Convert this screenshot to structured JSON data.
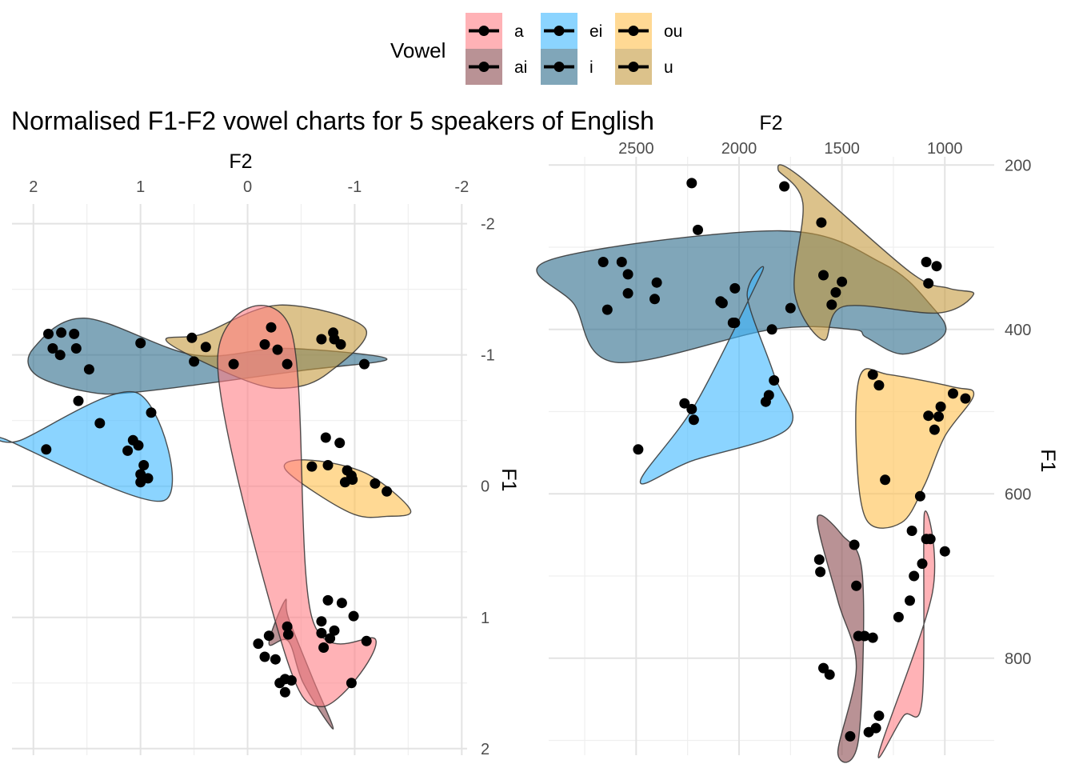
{
  "title": "Normalised F1-F2 vowel charts for 5 speakers of English",
  "legend": {
    "title": "Vowel",
    "placement": "top",
    "entries": [
      {
        "label": "a",
        "color": "#ff7f86"
      },
      {
        "label": "ai",
        "color": "#8b4a4f"
      },
      {
        "label": "ei",
        "color": "#3db8ff"
      },
      {
        "label": "i",
        "color": "#2c6a8a"
      },
      {
        "label": "ou",
        "color": "#ffc04d"
      },
      {
        "label": "u",
        "color": "#c49a3d"
      }
    ]
  },
  "chart_data": [
    {
      "type": "scatter",
      "xlabel": "F2",
      "ylabel": "F1",
      "x_reversed": true,
      "y_reversed": true,
      "xlim": [
        2.2,
        -2.05
      ],
      "ylim": [
        -2.15,
        2.05
      ],
      "x_ticks": [
        2,
        1,
        0,
        -1,
        -2
      ],
      "x_tick_labels": [
        "2",
        "1",
        "0",
        "-1",
        "-2"
      ],
      "y_ticks": [
        -2,
        -1,
        0,
        1,
        2
      ],
      "y_tick_labels": [
        "-2",
        "-1",
        "0",
        "1",
        "2"
      ],
      "x_axis_position": "top",
      "y_axis_position": "right",
      "grid": true,
      "series": [
        {
          "name": "a",
          "hull": [
            [
              0.28,
              -0.97
            ],
            [
              -0.4,
              -1.2
            ],
            [
              -0.6,
              1.0
            ],
            [
              -1.2,
              1.18
            ],
            [
              -0.7,
              1.68
            ],
            [
              -0.32,
              1.2
            ]
          ],
          "points": [
            [
              -0.75,
              0.87
            ],
            [
              -0.88,
              0.89
            ],
            [
              -0.99,
              0.99
            ],
            [
              -0.69,
              1.03
            ],
            [
              -0.81,
              1.1
            ],
            [
              -0.69,
              1.12
            ],
            [
              -0.77,
              1.16
            ],
            [
              -0.1,
              1.2
            ],
            [
              -0.71,
              1.23
            ],
            [
              -1.11,
              1.18
            ],
            [
              -0.97,
              1.5
            ]
          ]
        },
        {
          "name": "ai",
          "hull": [
            [
              -0.35,
              0.87
            ],
            [
              -0.38,
              1.0
            ],
            [
              -0.6,
              1.45
            ],
            [
              -0.8,
              1.85
            ],
            [
              -0.52,
              1.5
            ],
            [
              -0.38,
              1.18
            ],
            [
              -0.2,
              1.2
            ]
          ],
          "points": [
            [
              -0.37,
              1.07
            ],
            [
              -0.38,
              1.13
            ],
            [
              -0.2,
              1.14
            ],
            [
              -0.16,
              1.3
            ],
            [
              -0.26,
              1.32
            ],
            [
              -0.35,
              1.47
            ],
            [
              -0.41,
              1.48
            ],
            [
              -0.3,
              1.5
            ],
            [
              -0.35,
              1.57
            ]
          ]
        },
        {
          "name": "ei",
          "hull": [
            [
              2.12,
              -0.35
            ],
            [
              1.03,
              -0.71
            ],
            [
              0.78,
              0.11
            ],
            [
              2.24,
              -0.35
            ]
          ],
          "points": [
            [
              1.88,
              -0.28
            ],
            [
              0.9,
              -0.56
            ],
            [
              1.38,
              -0.48
            ],
            [
              1.07,
              -0.35
            ],
            [
              1.02,
              -0.31
            ],
            [
              0.97,
              -0.16
            ],
            [
              0.93,
              -0.06
            ],
            [
              1.12,
              -0.27
            ],
            [
              1.0,
              -0.03
            ],
            [
              1.0,
              -0.09
            ]
          ]
        },
        {
          "name": "i",
          "hull": [
            [
              2.0,
              -1.05
            ],
            [
              1.98,
              -0.85
            ],
            [
              1.5,
              -0.72
            ],
            [
              1.0,
              -0.72
            ],
            [
              -0.5,
              -0.88
            ],
            [
              -1.3,
              -0.97
            ],
            [
              -0.35,
              -1.05
            ],
            [
              0.5,
              -1.0
            ],
            [
              1.52,
              -1.28
            ]
          ],
          "points": [
            [
              1.74,
              -1.17
            ],
            [
              1.86,
              -1.16
            ],
            [
              1.82,
              -1.05
            ],
            [
              1.62,
              -1.16
            ],
            [
              1.6,
              -1.05
            ],
            [
              1.75,
              -1.0
            ],
            [
              1.48,
              -0.89
            ],
            [
              1.0,
              -1.09
            ],
            [
              0.5,
              -0.95
            ],
            [
              1.58,
              -0.65
            ],
            [
              -1.09,
              -0.93
            ]
          ]
        },
        {
          "name": "u",
          "hull": [
            [
              0.75,
              -1.1
            ],
            [
              0.42,
              -1.16
            ],
            [
              -0.3,
              -1.38
            ],
            [
              -1.1,
              -1.2
            ],
            [
              -0.75,
              -0.86
            ],
            [
              -0.4,
              -0.75
            ],
            [
              0.0,
              -0.8
            ]
          ],
          "points": [
            [
              0.52,
              -1.13
            ],
            [
              0.39,
              -1.06
            ],
            [
              -0.22,
              -1.21
            ],
            [
              -0.8,
              -1.17
            ],
            [
              -0.16,
              -1.08
            ],
            [
              -0.28,
              -1.04
            ],
            [
              -0.69,
              -1.12
            ],
            [
              -0.81,
              -1.12
            ],
            [
              -0.87,
              -1.08
            ],
            [
              -0.37,
              -0.93
            ],
            [
              0.13,
              -0.93
            ]
          ]
        },
        {
          "name": "ou",
          "hull": [
            [
              -0.55,
              -0.2
            ],
            [
              -1.1,
              -0.1
            ],
            [
              -1.52,
              0.18
            ],
            [
              -1.3,
              0.23
            ],
            [
              -0.95,
              0.2
            ],
            [
              -0.36,
              -0.12
            ]
          ],
          "points": [
            [
              -0.73,
              -0.37
            ],
            [
              -0.86,
              -0.33
            ],
            [
              -0.97,
              -0.08
            ],
            [
              -0.75,
              -0.16
            ],
            [
              -0.6,
              -0.15
            ],
            [
              -0.93,
              -0.12
            ],
            [
              -0.98,
              -0.05
            ],
            [
              -0.91,
              -0.03
            ],
            [
              -1.19,
              -0.02
            ],
            [
              -1.3,
              0.04
            ]
          ]
        }
      ]
    },
    {
      "type": "scatter",
      "xlabel": "F2",
      "ylabel": "F1",
      "x_reversed": true,
      "y_reversed": true,
      "xlim": [
        2925,
        760
      ],
      "ylim": [
        190,
        918
      ],
      "x_ticks": [
        2500,
        2000,
        1500,
        1000
      ],
      "x_tick_labels": [
        "2500",
        "2000",
        "1500",
        "1000"
      ],
      "y_ticks": [
        200,
        400,
        600,
        800
      ],
      "y_tick_labels": [
        "200",
        "400",
        "600",
        "800"
      ],
      "x_axis_position": "top",
      "y_axis_position": "right",
      "grid": true,
      "series": [
        {
          "name": "a",
          "hull": [
            [
              1100,
              625
            ],
            [
              1060,
              720
            ],
            [
              1320,
              915
            ],
            [
              1200,
              870
            ],
            [
              1110,
              850
            ]
          ],
          "points": [
            [
              1160,
              645
            ],
            [
              1090,
              655
            ],
            [
              1070,
              655
            ],
            [
              1110,
              685
            ],
            [
              1000,
              670
            ],
            [
              1150,
              700
            ],
            [
              1170,
              730
            ],
            [
              1225,
              750
            ],
            [
              1320,
              870
            ],
            [
              1335,
              885
            ]
          ]
        },
        {
          "name": "ai",
          "hull": [
            [
              1620,
              630
            ],
            [
              1500,
              650
            ],
            [
              1400,
              700
            ],
            [
              1420,
              900
            ],
            [
              1520,
              915
            ],
            [
              1430,
              810
            ],
            [
              1520,
              730
            ]
          ],
          "points": [
            [
              1610,
              680
            ],
            [
              1605,
              695
            ],
            [
              1440,
              662
            ],
            [
              1590,
              812
            ],
            [
              1430,
              712
            ],
            [
              1420,
              773
            ],
            [
              1390,
              773
            ],
            [
              1350,
              775
            ],
            [
              1560,
              820
            ],
            [
              1460,
              895
            ],
            [
              1370,
              890
            ]
          ]
        },
        {
          "name": "ei",
          "hull": [
            [
              1890,
              331
            ],
            [
              1960,
              360
            ],
            [
              1830,
              455
            ],
            [
              1760,
              520
            ],
            [
              2230,
              560
            ],
            [
              2480,
              585
            ],
            [
              2210,
              490
            ]
          ],
          "points": [
            [
              2020,
              350
            ],
            [
              2090,
              366
            ],
            [
              2030,
              392
            ],
            [
              1830,
              462
            ],
            [
              1870,
              488
            ],
            [
              1855,
              480
            ],
            [
              2230,
              497
            ],
            [
              2265,
              490
            ],
            [
              2220,
              510
            ],
            [
              2490,
              546
            ]
          ]
        },
        {
          "name": "i",
          "hull": [
            [
              2925,
              316
            ],
            [
              2800,
              370
            ],
            [
              2600,
              440
            ],
            [
              1840,
              400
            ],
            [
              1450,
              400
            ],
            [
              1380,
              410
            ],
            [
              1200,
              430
            ],
            [
              1000,
              405
            ],
            [
              1070,
              370
            ],
            [
              1300,
              320
            ],
            [
              1800,
              280
            ]
          ],
          "points": [
            [
              2230,
              222
            ],
            [
              2200,
              279
            ],
            [
              2660,
              318
            ],
            [
              2570,
              318
            ],
            [
              2540,
              333
            ],
            [
              2540,
              356
            ],
            [
              2400,
              343
            ],
            [
              2410,
              363
            ],
            [
              2640,
              376
            ],
            [
              2080,
              368
            ],
            [
              2020,
              392
            ],
            [
              1840,
              400
            ]
          ]
        },
        {
          "name": "u",
          "hull": [
            [
              1170,
              330
            ],
            [
              980,
              350
            ],
            [
              860,
              357
            ],
            [
              1030,
              380
            ],
            [
              1490,
              372
            ],
            [
              1590,
              413
            ],
            [
              1730,
              355
            ],
            [
              1690,
              246
            ],
            [
              1810,
              206
            ],
            [
              1710,
              213
            ]
          ],
          "points": [
            [
              1780,
              226
            ],
            [
              1600,
              270
            ],
            [
              1590,
              334
            ],
            [
              1500,
              342
            ],
            [
              1530,
              355
            ],
            [
              1550,
              370
            ],
            [
              1750,
              374
            ],
            [
              1090,
              318
            ],
            [
              1040,
              323
            ],
            [
              1080,
              344
            ]
          ]
        },
        {
          "name": "ou",
          "hull": [
            [
              1270,
              455
            ],
            [
              960,
              470
            ],
            [
              860,
              480
            ],
            [
              1000,
              530
            ],
            [
              1100,
              590
            ],
            [
              1210,
              635
            ],
            [
              1380,
              632
            ],
            [
              1430,
              545
            ],
            [
              1410,
              455
            ]
          ],
          "points": [
            [
              1350,
              455
            ],
            [
              1320,
              468
            ],
            [
              960,
              478
            ],
            [
              900,
              484
            ],
            [
              1020,
              494
            ],
            [
              1080,
              505
            ],
            [
              1030,
              506
            ],
            [
              1050,
              522
            ],
            [
              1290,
              583
            ],
            [
              1120,
              603
            ]
          ]
        }
      ]
    }
  ]
}
